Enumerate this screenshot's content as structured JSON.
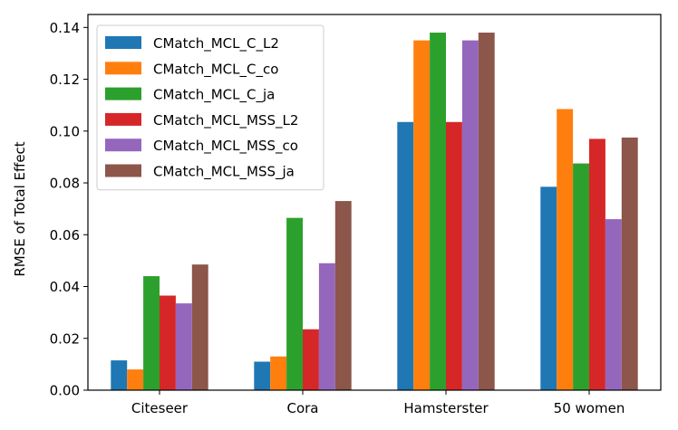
{
  "chart_data": {
    "type": "bar",
    "title": "",
    "xlabel": "",
    "ylabel": "RMSE of Total Effect",
    "ylim": [
      0,
      0.145
    ],
    "yticks": [
      "0.00",
      "0.02",
      "0.04",
      "0.06",
      "0.08",
      "0.10",
      "0.12",
      "0.14"
    ],
    "grid": false,
    "legend_position": "top-left",
    "categories": [
      "Citeseer",
      "Cora",
      "Hamsterster",
      "50 women"
    ],
    "series": [
      {
        "name": "CMatch_MCL_C_L2",
        "color": "#1f77b4",
        "values": [
          0.0115,
          0.011,
          0.1035,
          0.0785
        ]
      },
      {
        "name": "CMatch_MCL_C_co",
        "color": "#ff7f0e",
        "values": [
          0.008,
          0.013,
          0.135,
          0.1085
        ]
      },
      {
        "name": "CMatch_MCL_C_ja",
        "color": "#2ca02c",
        "values": [
          0.044,
          0.0665,
          0.138,
          0.0875
        ]
      },
      {
        "name": "CMatch_MCL_MSS_L2",
        "color": "#d62728",
        "values": [
          0.0365,
          0.0235,
          0.1035,
          0.097
        ]
      },
      {
        "name": "CMatch_MCL_MSS_co",
        "color": "#9467bd",
        "values": [
          0.0335,
          0.049,
          0.135,
          0.066
        ]
      },
      {
        "name": "CMatch_MCL_MSS_ja",
        "color": "#8c564b",
        "values": [
          0.0485,
          0.073,
          0.138,
          0.0975
        ]
      }
    ]
  }
}
